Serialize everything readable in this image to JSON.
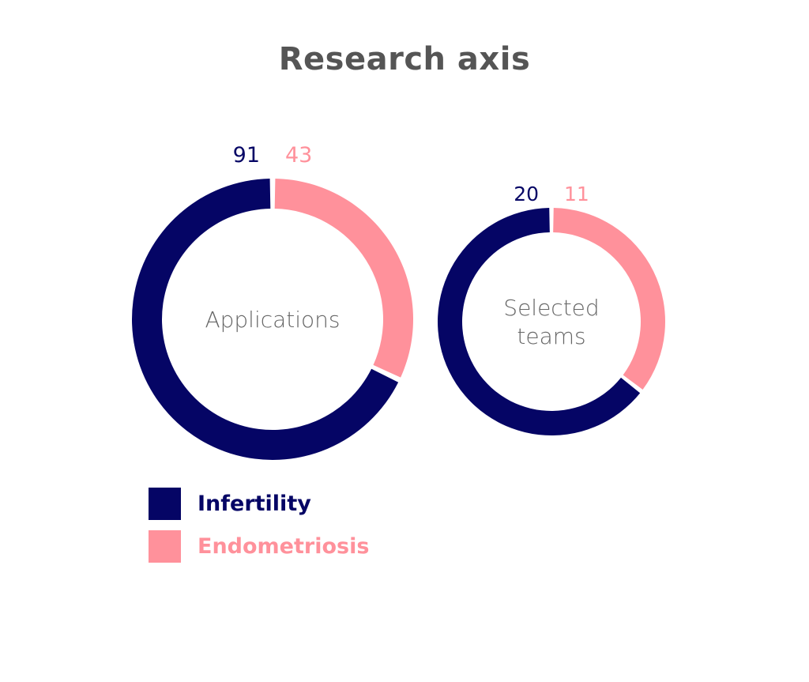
{
  "title": "Research axis",
  "colors": {
    "infertility": "#050565",
    "endometriosis": "#ff919b",
    "title": "#555555",
    "center_text": "#666666"
  },
  "legend": [
    {
      "label": "Infertility",
      "color": "#050565"
    },
    {
      "label": "Endometriosis",
      "color": "#ff919b"
    }
  ],
  "chart_data": [
    {
      "type": "pie",
      "variant": "donut",
      "center_label": [
        "Applications"
      ],
      "categories": [
        "Infertility",
        "Endometriosis"
      ],
      "values": [
        91,
        43
      ]
    },
    {
      "type": "pie",
      "variant": "donut",
      "center_label": [
        "Selected",
        "teams"
      ],
      "categories": [
        "Infertility",
        "Endometriosis"
      ],
      "values": [
        20,
        11
      ]
    }
  ]
}
